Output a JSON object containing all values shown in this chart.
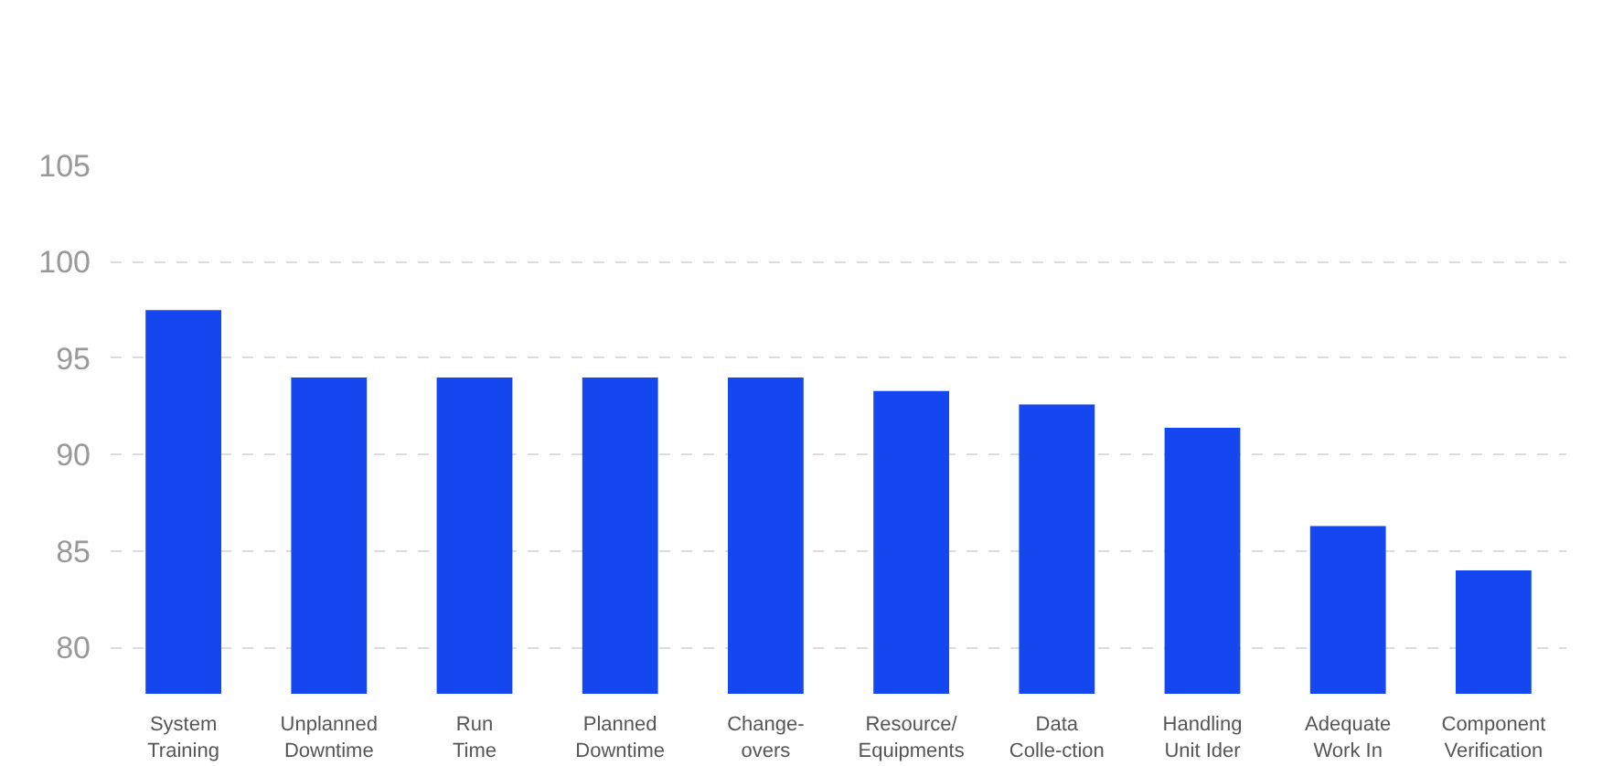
{
  "chart_data": {
    "type": "bar",
    "categories": [
      "System\nTraining",
      "Unplanned\nDowntime",
      "Run\nTime",
      "Planned\nDowntime",
      "Change-\novers",
      "Resource/\nEquipments",
      "Data\nColle-ction",
      "Handling\nUnit Ider",
      "Adequate\nWork In",
      "Component\nVerification"
    ],
    "values": [
      97.5,
      94,
      94,
      94,
      94,
      93.3,
      92.6,
      91.4,
      86.3,
      84
    ],
    "color": "#1447f0",
    "ylim": [
      77.6,
      105
    ],
    "yticks": [
      80,
      85,
      90,
      95,
      100,
      105
    ],
    "grid": "y"
  }
}
